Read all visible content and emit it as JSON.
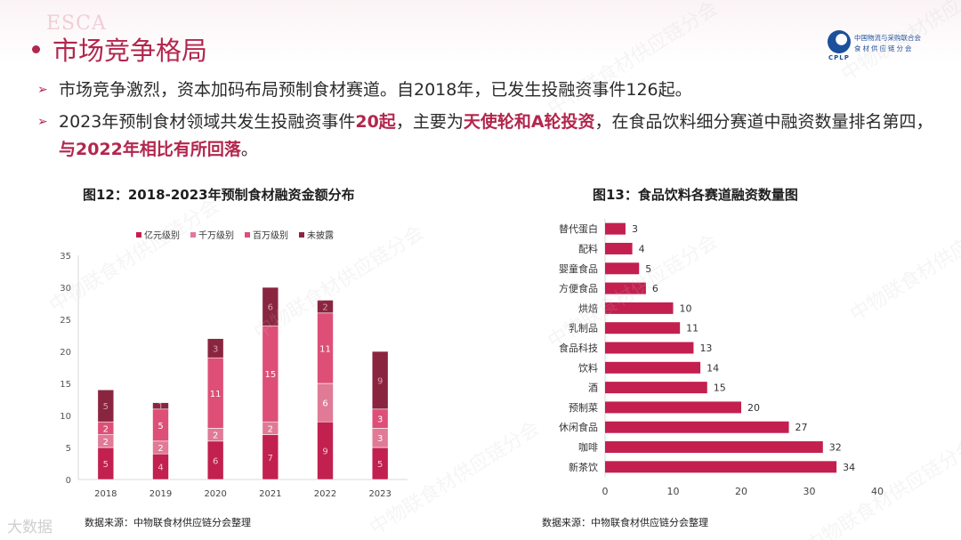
{
  "brand_watermark": "ESCA",
  "title": "市场竞争格局",
  "logo": {
    "line1": "中国物流与采购联合会",
    "line2": "食材供应链分会",
    "abbr": "CPLP"
  },
  "bullets": [
    {
      "parts": [
        {
          "text": "市场竞争激烈，资本加码布局预制食材赛道。自2018年，已发生投融资事件126起。",
          "hl": false
        }
      ]
    },
    {
      "parts": [
        {
          "text": "2023年预制食材领域共发生投融资事件",
          "hl": false
        },
        {
          "text": "20起",
          "hl": true
        },
        {
          "text": "，主要为",
          "hl": false
        },
        {
          "text": "天使轮和A轮投资",
          "hl": true
        },
        {
          "text": "，在食品饮料细分赛道中融资数量排名第四，",
          "hl": false
        },
        {
          "text": "与2022年相比有所回落",
          "hl": true
        },
        {
          "text": "。",
          "hl": false
        }
      ]
    }
  ],
  "watermark_text": "中物联食材供应链分会",
  "bottom_watermark": "大数据",
  "colors": {
    "accent": "#b3264d",
    "yi": "#c2204f",
    "qianwan": "#e07a96",
    "baiwan": "#dd4f77",
    "undisclosed": "#8a2540",
    "bar13": "#c31f4f"
  },
  "chart_data": [
    {
      "type": "bar",
      "stacked": true,
      "title": "图12：2018-2023年预制食材融资金额分布",
      "source": "数据来源：中物联食材供应链分会整理",
      "categories": [
        "2018",
        "2019",
        "2020",
        "2021",
        "2022",
        "2023"
      ],
      "series": [
        {
          "name": "亿元级别",
          "values": [
            5,
            4,
            6,
            7,
            9,
            5
          ]
        },
        {
          "name": "千万级别",
          "values": [
            2,
            2,
            2,
            2,
            6,
            3
          ]
        },
        {
          "name": "百万级别",
          "values": [
            2,
            5,
            11,
            15,
            11,
            3
          ]
        },
        {
          "name": "未披露",
          "values": [
            5,
            1,
            3,
            6,
            2,
            9
          ]
        }
      ],
      "totals": [
        14,
        12,
        22,
        30,
        28,
        20
      ],
      "ylim": [
        0,
        35
      ],
      "yticks": [
        0,
        5,
        10,
        15,
        20,
        25,
        30,
        35
      ],
      "grid": false,
      "legend": "top-left"
    },
    {
      "type": "bar",
      "orientation": "horizontal",
      "title": "图13：食品饮料各赛道融资数量图",
      "source": "数据来源：中物联食材供应链分会整理",
      "categories": [
        "替代蛋白",
        "配料",
        "婴童食品",
        "方便食品",
        "烘焙",
        "乳制品",
        "食品科技",
        "饮料",
        "酒",
        "预制菜",
        "休闲食品",
        "咖啡",
        "新茶饮"
      ],
      "values": [
        3,
        4,
        5,
        6,
        10,
        11,
        13,
        14,
        15,
        20,
        27,
        32,
        34
      ],
      "xlim": [
        0,
        40
      ],
      "xticks": [
        0,
        10,
        20,
        30,
        40
      ],
      "grid": false
    }
  ]
}
